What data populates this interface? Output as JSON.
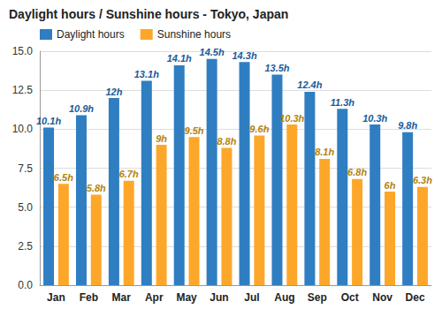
{
  "chart_data": {
    "type": "bar",
    "title": "Daylight hours / Sunshine hours - Tokyo, Japan",
    "categories": [
      "Jan",
      "Feb",
      "Mar",
      "Apr",
      "May",
      "Jun",
      "Jul",
      "Aug",
      "Sep",
      "Oct",
      "Nov",
      "Dec"
    ],
    "series": [
      {
        "name": "Daylight hours",
        "color": "#2f7ec2",
        "values": [
          10.1,
          10.9,
          12,
          13.1,
          14.1,
          14.5,
          14.3,
          13.5,
          12.4,
          11.3,
          10.3,
          9.8
        ],
        "value_labels": [
          "10.1h",
          "10.9h",
          "12h",
          "13.1h",
          "14.1h",
          "14.5h",
          "14.3h",
          "13.5h",
          "12.4h",
          "11.3h",
          "10.3h",
          "9.8h"
        ]
      },
      {
        "name": "Sunshine hours",
        "color": "#fda72a",
        "values": [
          6.5,
          5.8,
          6.7,
          9,
          9.5,
          8.8,
          9.6,
          10.3,
          8.1,
          6.8,
          6,
          6.3
        ],
        "value_labels": [
          "6.5h",
          "5.8h",
          "6.7h",
          "9h",
          "9.5h",
          "8.8h",
          "9.6h",
          "10.3h",
          "8.1h",
          "6.8h",
          "6h",
          "6.3h"
        ]
      }
    ],
    "ylim": [
      0,
      15
    ],
    "yticks": [
      {
        "value": 0,
        "label": "0.0"
      },
      2.5,
      {
        "value": 5,
        "label": "5.0"
      },
      7.5,
      {
        "value": 10,
        "label": "10.0"
      },
      12.5,
      {
        "value": 15,
        "label": "15.0"
      }
    ],
    "grid": true,
    "legend": "top-left",
    "data_labels": true
  }
}
